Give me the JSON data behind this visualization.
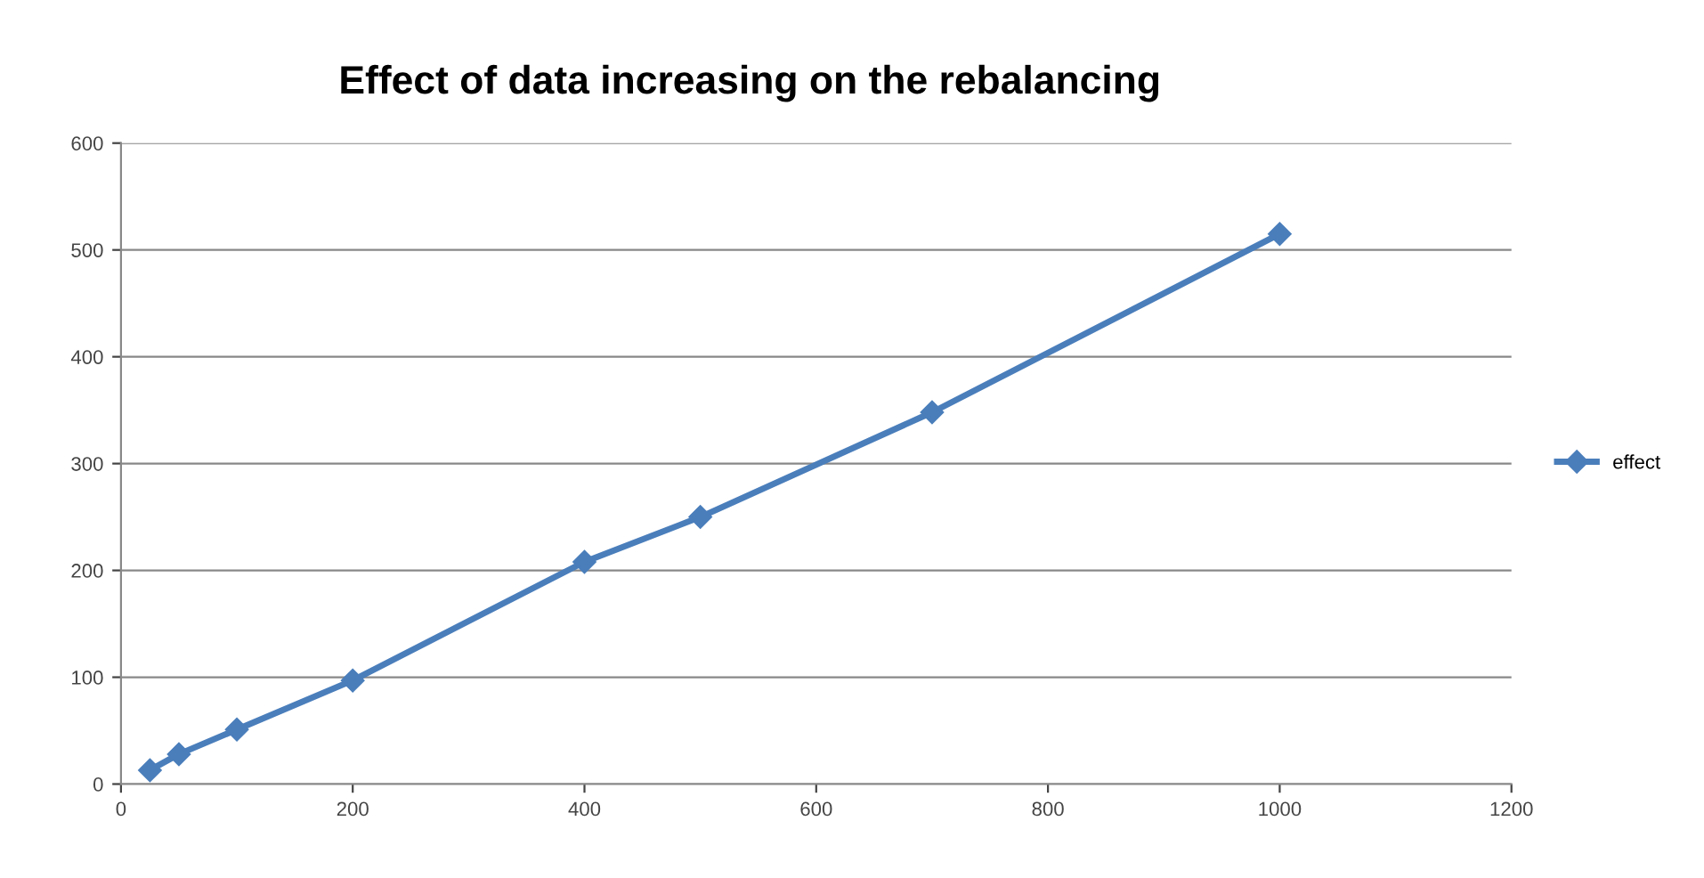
{
  "chart_data": {
    "type": "line",
    "title": "Effect of data increasing on the rebalancing",
    "x": [
      25,
      50,
      100,
      200,
      400,
      500,
      700,
      1000
    ],
    "series": [
      {
        "name": "effect",
        "color": "#4a7ebb",
        "values": [
          13,
          28,
          51,
          97,
          208,
          250,
          348,
          515
        ]
      }
    ],
    "xlim": [
      0,
      1200
    ],
    "xticks": [
      0,
      200,
      400,
      600,
      800,
      1000,
      1200
    ],
    "ylim": [
      0,
      600
    ],
    "yticks": [
      0,
      100,
      200,
      300,
      400,
      500,
      600
    ],
    "grid": "y",
    "legend": "right",
    "marker": "diamond",
    "line_style": "solid"
  }
}
